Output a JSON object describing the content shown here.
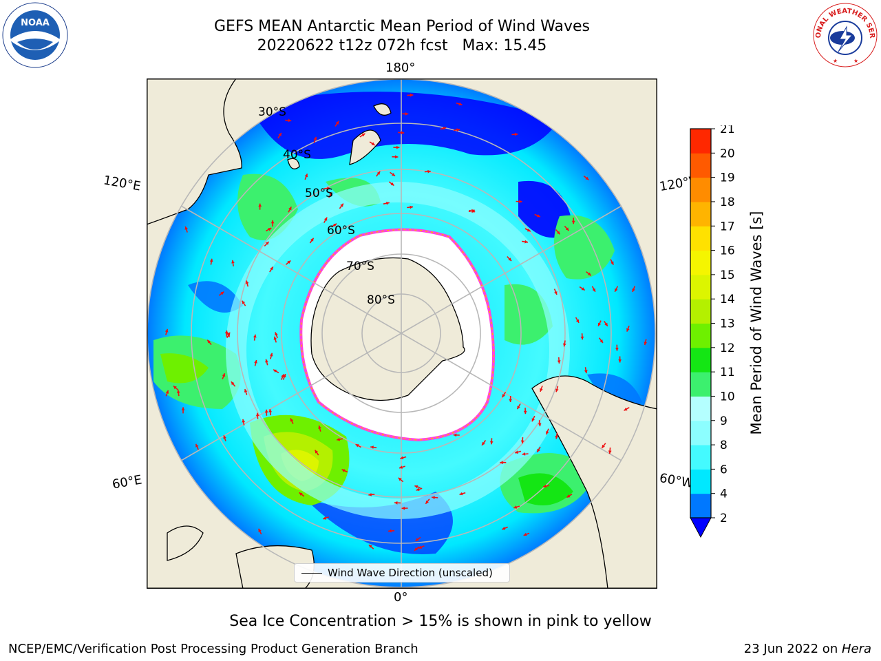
{
  "title": {
    "line1": "GEFS MEAN Antarctic Mean Period of Wind Waves",
    "line2": "20220622 t12z 072h fcst   Max: 15.45"
  },
  "map": {
    "projection": "south-polar-stereographic",
    "lon_labels": {
      "top": "180°",
      "bottom": "0°",
      "left_upper": "120°E",
      "left_lower": "60°E",
      "right_upper": "120°W",
      "right_lower": "60°W"
    },
    "lat_labels": [
      "30°S",
      "40°S",
      "50°S",
      "60°S",
      "70°S",
      "80°S"
    ],
    "colors": {
      "land": "#efebd9",
      "ice": "#ffffff",
      "ice_edge": "#ff44dd",
      "arrow": "#ee1111",
      "grid": "#b8b8b8"
    },
    "legend_label": "Wind Wave Direction (unscaled)"
  },
  "colorbar": {
    "label": "Mean Period of Wind Waves [s]",
    "ticks": [
      "2",
      "4",
      "6",
      "8",
      "9",
      "10",
      "11",
      "12",
      "13",
      "14",
      "15",
      "16",
      "17",
      "18",
      "19",
      "20",
      "21"
    ],
    "colors": [
      "#0078ff",
      "#00e8ff",
      "#44faff",
      "#8cfeff",
      "#b4ffff",
      "#3cf06e",
      "#14e614",
      "#6ef000",
      "#b4f000",
      "#dcf500",
      "#f5f500",
      "#ffe100",
      "#ffb400",
      "#ff8c00",
      "#ff5a00",
      "#ff2800"
    ],
    "under_color": "#0000ff"
  },
  "subtitle": "Sea Ice Concentration > 15% is shown in pink to yellow",
  "footer": {
    "left": "NCEP/EMC/Verification Post Processing Product Generation Branch",
    "right_date": "23 Jun 2022 on ",
    "right_host": "Hera"
  },
  "logos": {
    "noaa_text": "NOAA",
    "nws_text": "NATIONAL WEATHER SERVICE"
  }
}
